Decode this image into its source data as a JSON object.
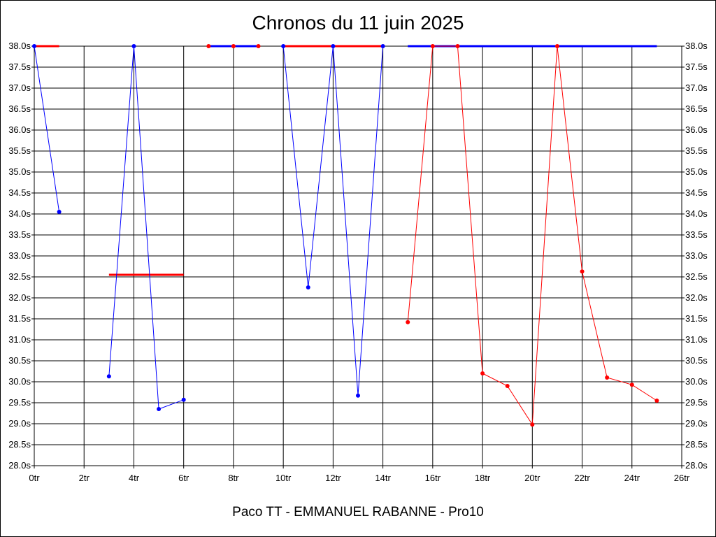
{
  "chart_data": {
    "type": "line",
    "title": "Chronos du 11 juin 2025",
    "subtitle": "Paco TT - EMMANUEL RABANNE - Pro10",
    "xlim": [
      0,
      26
    ],
    "ylim": [
      28.0,
      38.0
    ],
    "x_ticks": [
      "0tr",
      "2tr",
      "4tr",
      "6tr",
      "8tr",
      "10tr",
      "12tr",
      "14tr",
      "16tr",
      "18tr",
      "20tr",
      "22tr",
      "24tr",
      "26tr"
    ],
    "y_ticks": [
      "28.0s",
      "28.5s",
      "29.0s",
      "29.5s",
      "30.0s",
      "30.5s",
      "31.0s",
      "31.5s",
      "32.0s",
      "32.5s",
      "33.0s",
      "33.5s",
      "34.0s",
      "34.5s",
      "35.0s",
      "35.5s",
      "36.0s",
      "36.5s",
      "37.0s",
      "37.5s",
      "38.0s"
    ],
    "grid": true,
    "series": [
      {
        "color": "#0000ff",
        "segments": [
          [
            [
              0,
              38.0
            ],
            [
              1,
              34.05
            ]
          ],
          [
            [
              3,
              30.13
            ],
            [
              4,
              38.0
            ],
            [
              5,
              29.35
            ],
            [
              6,
              29.57
            ]
          ],
          [
            [
              10,
              38.0
            ],
            [
              11,
              32.25
            ],
            [
              12,
              38.0
            ],
            [
              13,
              29.67
            ],
            [
              14,
              38.0
            ]
          ]
        ]
      },
      {
        "color": "#ff0000",
        "segments": [
          [
            [
              15,
              31.42
            ],
            [
              16,
              38.0
            ],
            [
              17,
              38.0
            ],
            [
              18,
              30.2
            ],
            [
              19,
              29.9
            ],
            [
              20,
              28.98
            ],
            [
              21,
              38.0
            ],
            [
              22,
              32.63
            ],
            [
              23,
              30.1
            ],
            [
              24,
              29.93
            ],
            [
              25,
              29.55
            ]
          ]
        ]
      }
    ],
    "points_at_top": [
      {
        "x": 7,
        "color": "#ff0000"
      },
      {
        "x": 8,
        "color": "#ff0000"
      },
      {
        "x": 9,
        "color": "#ff0000"
      }
    ],
    "reference_lines": [
      {
        "x_start": 0,
        "x_end": 1,
        "y": 38.0,
        "color": "#ff0000"
      },
      {
        "x_start": 3,
        "x_end": 6,
        "y": 32.55,
        "color": "#ff0000"
      },
      {
        "x_start": 7,
        "x_end": 9,
        "y": 38.0,
        "color": "#0000ff"
      },
      {
        "x_start": 10,
        "x_end": 14,
        "y": 38.0,
        "color": "#ff0000"
      },
      {
        "x_start": 15,
        "x_end": 25,
        "y": 38.0,
        "color": "#0000ff"
      }
    ]
  }
}
